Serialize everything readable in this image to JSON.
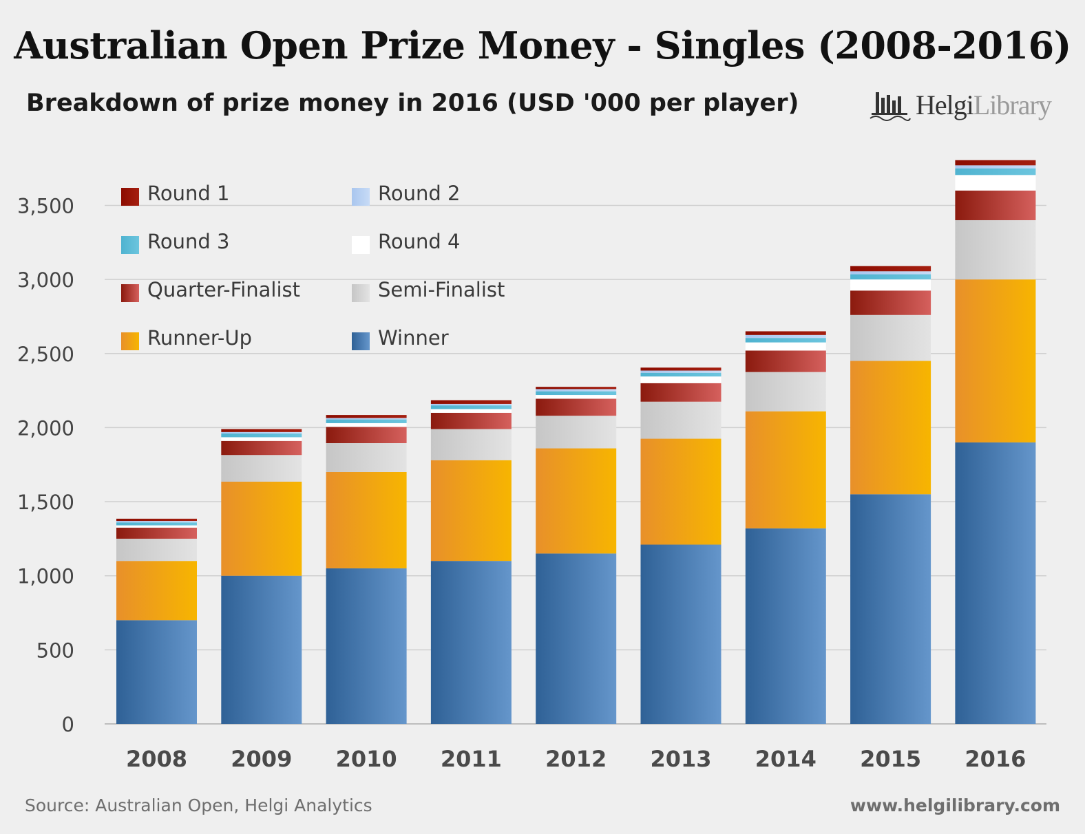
{
  "title": "Australian Open Prize Money - Singles (2008-2016)",
  "subtitle": "Breakdown of prize money in 2016 (USD '000 per player)",
  "brand": {
    "name_bold": "Helgi",
    "name_light": "Library",
    "icon": "bar-chart-building-logo-icon"
  },
  "source": "Source: Australian Open, Helgi Analytics",
  "website": "www.helgilibrary.com",
  "chart_data": {
    "type": "bar",
    "stacked": true,
    "title": "Australian Open Prize Money - Singles (2008-2016)",
    "xlabel": "",
    "ylabel": "USD '000 per player",
    "ylim": [
      0,
      3800
    ],
    "yticks": [
      0,
      500,
      1000,
      1500,
      2000,
      2500,
      3000,
      3500
    ],
    "ytick_labels": [
      "0",
      "500",
      "1,000",
      "1,500",
      "2,000",
      "2,500",
      "3,000",
      "3,500"
    ],
    "grid": true,
    "legend_position": "top-left",
    "categories": [
      "2008",
      "2009",
      "2010",
      "2011",
      "2012",
      "2013",
      "2014",
      "2015",
      "2016"
    ],
    "series": [
      {
        "name": "Winner",
        "color_dark": "#2f6196",
        "color_light": "#6596cb",
        "values": [
          700,
          1000,
          1050,
          1100,
          1150,
          1210,
          1320,
          1550,
          1900
        ]
      },
      {
        "name": "Runner-Up",
        "color_dark": "#e8902a",
        "color_light": "#f7b500",
        "values": [
          400,
          635,
          650,
          680,
          710,
          715,
          790,
          900,
          1100
        ]
      },
      {
        "name": "Semi-Finalist",
        "color_dark": "#c6c6c6",
        "color_light": "#e3e3e3",
        "values": [
          150,
          180,
          195,
          210,
          220,
          250,
          265,
          310,
          400
        ]
      },
      {
        "name": "Quarter-Finalist",
        "color_dark": "#8b1a0e",
        "color_light": "#d5605d",
        "values": [
          75,
          95,
          110,
          110,
          115,
          125,
          145,
          165,
          200
        ]
      },
      {
        "name": "Round 4",
        "color_dark": "#ffffff",
        "color_light": "#ffffff",
        "values": [
          15,
          25,
          25,
          25,
          25,
          45,
          55,
          75,
          105
        ]
      },
      {
        "name": "Round 3",
        "color_dark": "#4fb3d0",
        "color_light": "#6cc5de",
        "values": [
          20,
          25,
          25,
          25,
          25,
          25,
          30,
          35,
          45
        ]
      },
      {
        "name": "Round 2",
        "color_dark": "#a9c6ee",
        "color_light": "#c7dbf6",
        "values": [
          10,
          10,
          10,
          10,
          15,
          15,
          20,
          20,
          20
        ]
      },
      {
        "name": "Round 1",
        "color_dark": "#8c0c00",
        "color_light": "#a51f10",
        "values": [
          15,
          20,
          20,
          25,
          15,
          20,
          25,
          35,
          35
        ]
      }
    ],
    "legend": [
      "Round 1",
      "Round 2",
      "Round 3",
      "Round 4",
      "Quarter-Finalist",
      "Semi-Finalist",
      "Runner-Up",
      "Winner"
    ]
  }
}
